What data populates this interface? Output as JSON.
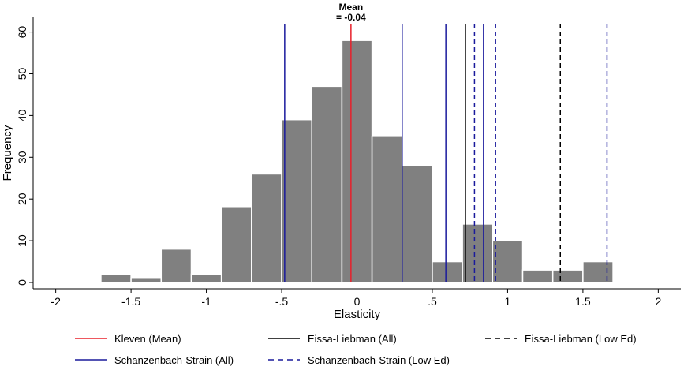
{
  "chart_data": {
    "type": "bar",
    "xlabel": "Elasticity",
    "ylabel": "Frequency",
    "xlim": [
      -2.15,
      2.15
    ],
    "ylim": [
      0,
      62
    ],
    "xticks": [
      -2,
      -1.5,
      -1,
      -0.5,
      0,
      0.5,
      1,
      1.5,
      2
    ],
    "xtick_labels": [
      "-2",
      "-1.5",
      "-1",
      "-.5",
      "0",
      ".5",
      "1",
      "1.5",
      "2"
    ],
    "yticks": [
      0,
      10,
      20,
      30,
      40,
      50,
      60
    ],
    "ytick_labels": [
      "0",
      "10",
      "20",
      "30",
      "40",
      "50",
      "60"
    ],
    "grid": false,
    "bar_color": "#808080",
    "bins": [
      {
        "start": -1.7,
        "end": -1.5,
        "value": 2
      },
      {
        "start": -1.5,
        "end": -1.3,
        "value": 1
      },
      {
        "start": -1.3,
        "end": -1.1,
        "value": 8
      },
      {
        "start": -1.1,
        "end": -0.9,
        "value": 2
      },
      {
        "start": -0.9,
        "end": -0.7,
        "value": 18
      },
      {
        "start": -0.7,
        "end": -0.5,
        "value": 26
      },
      {
        "start": -0.5,
        "end": -0.3,
        "value": 39
      },
      {
        "start": -0.3,
        "end": -0.1,
        "value": 47
      },
      {
        "start": -0.1,
        "end": 0.1,
        "value": 58
      },
      {
        "start": 0.1,
        "end": 0.3,
        "value": 35
      },
      {
        "start": 0.3,
        "end": 0.5,
        "value": 28
      },
      {
        "start": 0.5,
        "end": 0.7,
        "value": 5
      },
      {
        "start": 0.7,
        "end": 0.9,
        "value": 14
      },
      {
        "start": 0.9,
        "end": 1.1,
        "value": 10
      },
      {
        "start": 1.1,
        "end": 1.3,
        "value": 3
      },
      {
        "start": 1.3,
        "end": 1.5,
        "value": 3
      },
      {
        "start": 1.5,
        "end": 1.7,
        "value": 5
      }
    ],
    "vlines": [
      {
        "series": "Kleven (Mean)",
        "x": -0.04,
        "color": "#e8202a",
        "style": "solid"
      },
      {
        "series": "Eissa-Liebman (All)",
        "x": 0.72,
        "color": "#000000",
        "style": "solid"
      },
      {
        "series": "Eissa-Liebman (Low Ed)",
        "x": 1.35,
        "color": "#000000",
        "style": "dashed"
      },
      {
        "series": "Schanzenbach-Strain (All)",
        "x": -0.48,
        "color": "#1a1a9c",
        "style": "solid"
      },
      {
        "series": "Schanzenbach-Strain (All)",
        "x": 0.3,
        "color": "#1a1a9c",
        "style": "solid"
      },
      {
        "series": "Schanzenbach-Strain (All)",
        "x": 0.59,
        "color": "#1a1a9c",
        "style": "solid"
      },
      {
        "series": "Schanzenbach-Strain (All)",
        "x": 0.84,
        "color": "#1a1a9c",
        "style": "solid"
      },
      {
        "series": "Schanzenbach-Strain (Low Ed)",
        "x": 0.78,
        "color": "#1a1a9c",
        "style": "dashed"
      },
      {
        "series": "Schanzenbach-Strain (Low Ed)",
        "x": 0.92,
        "color": "#1a1a9c",
        "style": "dashed"
      },
      {
        "series": "Schanzenbach-Strain (Low Ed)",
        "x": 1.66,
        "color": "#1a1a9c",
        "style": "dashed"
      }
    ],
    "annotation": {
      "line1": "Mean",
      "line2": "= -0.04",
      "x": -0.04
    },
    "legend": {
      "placement": "bottom",
      "entries": [
        {
          "label": "Kleven (Mean)",
          "color": "#e8202a",
          "style": "solid"
        },
        {
          "label": "Eissa-Liebman (All)",
          "color": "#000000",
          "style": "solid"
        },
        {
          "label": "Eissa-Liebman (Low Ed)",
          "color": "#000000",
          "style": "dashed"
        },
        {
          "label": "Schanzenbach-Strain (All)",
          "color": "#1a1a9c",
          "style": "solid"
        },
        {
          "label": "Schanzenbach-Strain (Low Ed)",
          "color": "#1a1a9c",
          "style": "dashed"
        }
      ]
    }
  }
}
